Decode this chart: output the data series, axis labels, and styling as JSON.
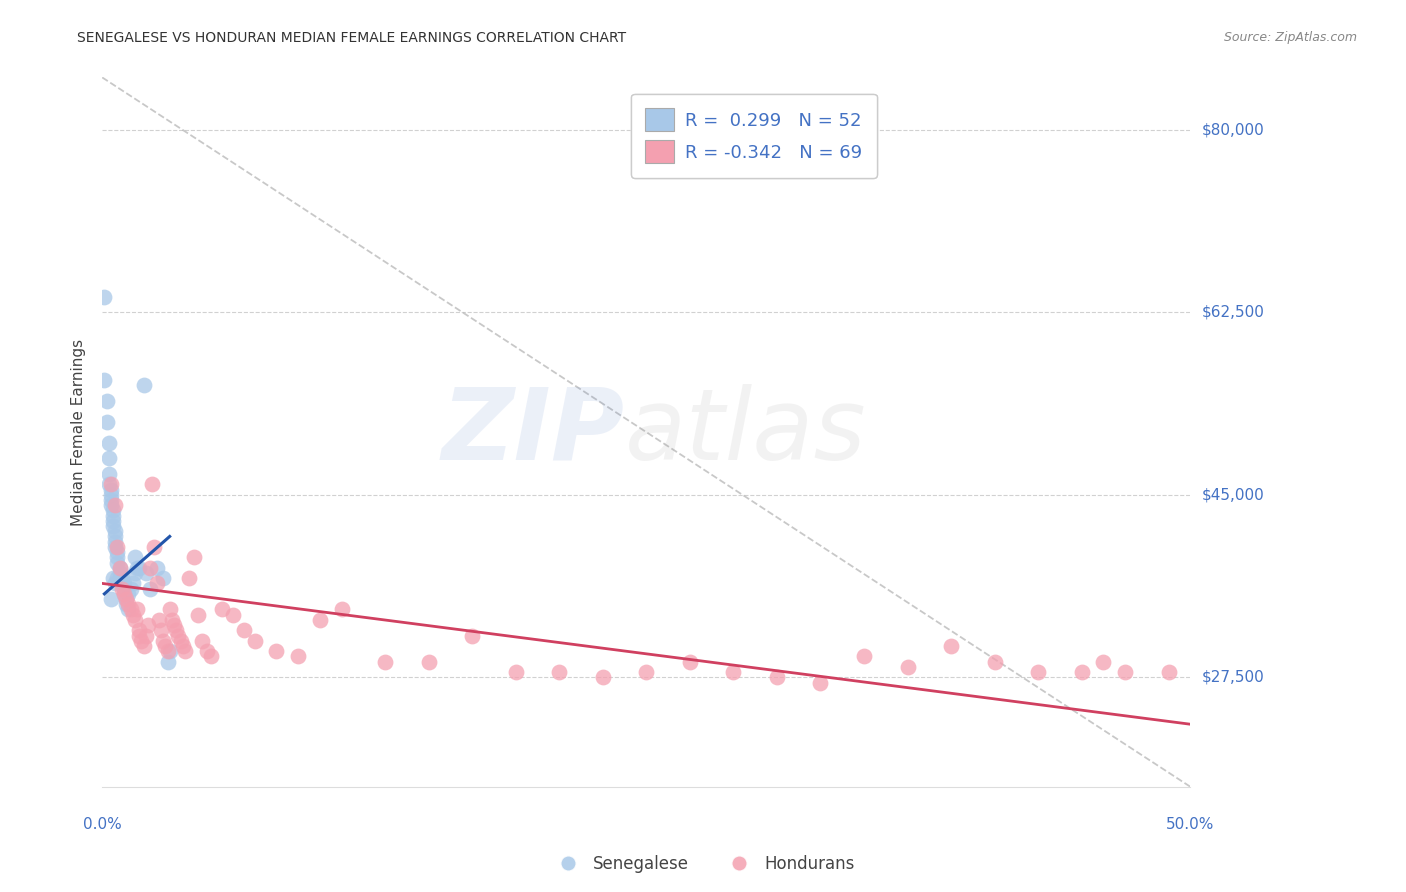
{
  "title": "SENEGALESE VS HONDURAN MEDIAN FEMALE EARNINGS CORRELATION CHART",
  "source": "Source: ZipAtlas.com",
  "ylabel": "Median Female Earnings",
  "y_ticks": [
    27500,
    45000,
    62500,
    80000
  ],
  "y_tick_labels": [
    "$27,500",
    "$45,000",
    "$62,500",
    "$80,000"
  ],
  "x_range": [
    0.0,
    0.5
  ],
  "y_range": [
    17000,
    85000
  ],
  "legend_blue_label": "R =  0.299   N = 52",
  "legend_pink_label": "R = -0.342   N = 69",
  "legend_bottom_blue": "Senegalese",
  "legend_bottom_pink": "Hondurans",
  "blue_color": "#a8c8e8",
  "blue_scatter_edge": "none",
  "blue_line_color": "#2255aa",
  "pink_color": "#f4a0b0",
  "pink_line_color": "#d04060",
  "blue_scatter_x": [
    0.001,
    0.001,
    0.002,
    0.002,
    0.003,
    0.003,
    0.003,
    0.003,
    0.004,
    0.004,
    0.004,
    0.004,
    0.005,
    0.005,
    0.005,
    0.005,
    0.006,
    0.006,
    0.006,
    0.006,
    0.007,
    0.007,
    0.007,
    0.008,
    0.008,
    0.008,
    0.009,
    0.009,
    0.01,
    0.01,
    0.01,
    0.011,
    0.011,
    0.012,
    0.012,
    0.013,
    0.014,
    0.015,
    0.015,
    0.016,
    0.017,
    0.019,
    0.02,
    0.022,
    0.025,
    0.028,
    0.03,
    0.031,
    0.004,
    0.005,
    0.006,
    0.007
  ],
  "blue_scatter_y": [
    64000,
    56000,
    54000,
    52000,
    50000,
    48500,
    47000,
    46000,
    45500,
    45000,
    44500,
    44000,
    43500,
    43000,
    42500,
    42000,
    41500,
    41000,
    40500,
    40000,
    39500,
    39000,
    38500,
    38000,
    37500,
    37000,
    37000,
    36500,
    36000,
    36500,
    35500,
    35000,
    34500,
    35500,
    34000,
    36000,
    36500,
    37500,
    39000,
    38000,
    38000,
    55500,
    37500,
    36000,
    38000,
    37000,
    29000,
    30000,
    35000,
    37000,
    36500,
    37000
  ],
  "pink_scatter_x": [
    0.004,
    0.006,
    0.007,
    0.008,
    0.009,
    0.01,
    0.011,
    0.012,
    0.013,
    0.014,
    0.015,
    0.016,
    0.017,
    0.017,
    0.018,
    0.019,
    0.02,
    0.021,
    0.022,
    0.023,
    0.024,
    0.025,
    0.026,
    0.027,
    0.028,
    0.029,
    0.03,
    0.031,
    0.032,
    0.033,
    0.034,
    0.035,
    0.036,
    0.037,
    0.038,
    0.04,
    0.042,
    0.044,
    0.046,
    0.048,
    0.05,
    0.055,
    0.06,
    0.065,
    0.07,
    0.08,
    0.09,
    0.1,
    0.11,
    0.13,
    0.15,
    0.17,
    0.19,
    0.21,
    0.23,
    0.25,
    0.27,
    0.29,
    0.31,
    0.33,
    0.35,
    0.37,
    0.39,
    0.41,
    0.43,
    0.45,
    0.46,
    0.47,
    0.49
  ],
  "pink_scatter_y": [
    46000,
    44000,
    40000,
    38000,
    36000,
    35500,
    35000,
    34500,
    34000,
    33500,
    33000,
    34000,
    32000,
    31500,
    31000,
    30500,
    31500,
    32500,
    38000,
    46000,
    40000,
    36500,
    33000,
    32000,
    31000,
    30500,
    30000,
    34000,
    33000,
    32500,
    32000,
    31500,
    31000,
    30500,
    30000,
    37000,
    39000,
    33500,
    31000,
    30000,
    29500,
    34000,
    33500,
    32000,
    31000,
    30000,
    29500,
    33000,
    34000,
    29000,
    29000,
    31500,
    28000,
    28000,
    27500,
    28000,
    29000,
    28000,
    27500,
    27000,
    29500,
    28500,
    30500,
    29000,
    28000,
    28000,
    29000,
    28000,
    28000
  ],
  "blue_trendline_x": [
    0.001,
    0.031
  ],
  "blue_trendline_y": [
    35500,
    41000
  ],
  "pink_trendline_x": [
    0.0,
    0.5
  ],
  "pink_trendline_y": [
    36500,
    23000
  ],
  "grid_color": "#cccccc",
  "background_color": "#ffffff"
}
